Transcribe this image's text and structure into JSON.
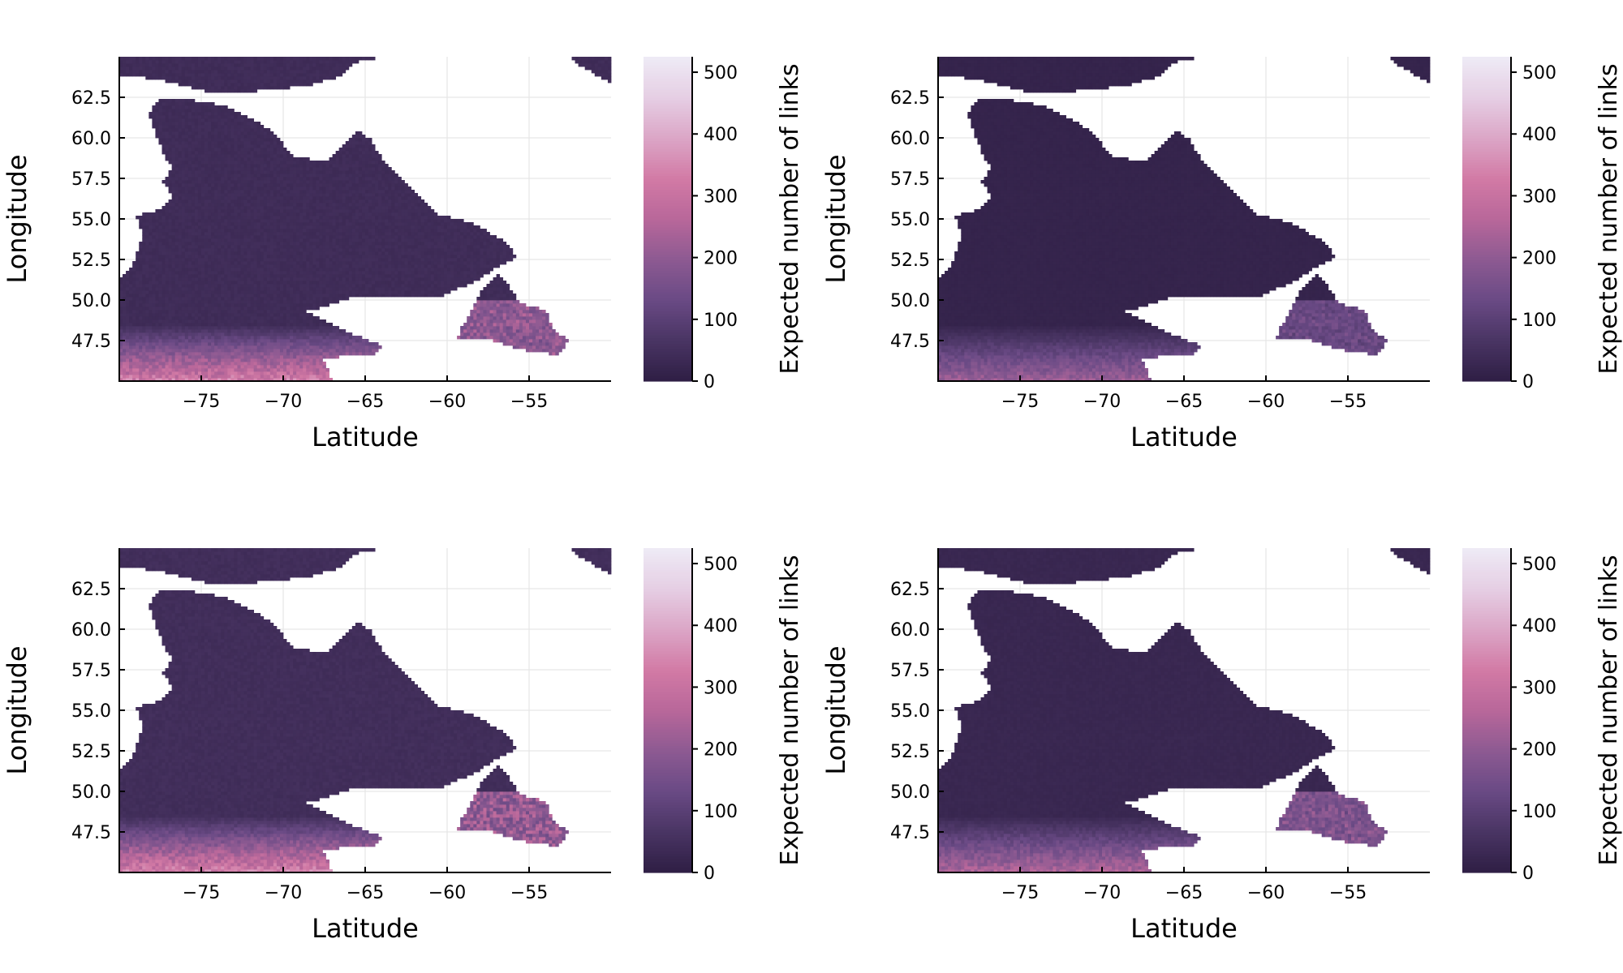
{
  "figure": {
    "layout": "2x2 grid of heatmap maps",
    "x_axis_label": "Latitude",
    "y_axis_label": "Longitude",
    "colorbar_label": "Expected number of links"
  },
  "chart_data": [
    {
      "type": "heatmap",
      "panel": "top-left",
      "title": "",
      "xlabel": "Latitude",
      "ylabel": "Longitude",
      "xlim": [
        -80,
        -50
      ],
      "ylim": [
        45,
        65
      ],
      "xticks": [
        "−75",
        "−70",
        "−65",
        "−60",
        "−55"
      ],
      "xtick_values": [
        -75,
        -70,
        -65,
        -60,
        -55
      ],
      "yticks": [
        "47.5",
        "50.0",
        "52.5",
        "55.0",
        "57.5",
        "60.0",
        "62.5"
      ],
      "ytick_values": [
        47.5,
        50.0,
        52.5,
        55.0,
        57.5,
        60.0,
        62.5
      ],
      "colorbar": {
        "label": "Expected number of links",
        "range": [
          0,
          525
        ],
        "ticks": [
          "0",
          "100",
          "200",
          "300",
          "400",
          "500"
        ],
        "tick_values": [
          0,
          100,
          200,
          300,
          400,
          500
        ]
      },
      "intensity": {
        "north": 40,
        "south": 330,
        "southeast": 230
      },
      "grid": true
    },
    {
      "type": "heatmap",
      "panel": "top-right",
      "title": "",
      "xlabel": "Latitude",
      "ylabel": "Longitude",
      "xlim": [
        -80,
        -50
      ],
      "ylim": [
        45,
        65
      ],
      "xticks": [
        "−75",
        "−70",
        "−65",
        "−60",
        "−55"
      ],
      "xtick_values": [
        -75,
        -70,
        -65,
        -60,
        -55
      ],
      "yticks": [
        "47.5",
        "50.0",
        "52.5",
        "55.0",
        "57.5",
        "60.0",
        "62.5"
      ],
      "ytick_values": [
        47.5,
        50.0,
        52.5,
        55.0,
        57.5,
        60.0,
        62.5
      ],
      "colorbar": {
        "label": "Expected number of links",
        "range": [
          0,
          525
        ],
        "ticks": [
          "0",
          "100",
          "200",
          "300",
          "400",
          "500"
        ],
        "tick_values": [
          0,
          100,
          200,
          300,
          400,
          500
        ]
      },
      "intensity": {
        "north": 15,
        "south": 220,
        "southeast": 150
      },
      "grid": true
    },
    {
      "type": "heatmap",
      "panel": "bottom-left",
      "title": "",
      "xlabel": "Latitude",
      "ylabel": "Longitude",
      "xlim": [
        -80,
        -50
      ],
      "ylim": [
        45,
        65
      ],
      "xticks": [
        "−75",
        "−70",
        "−65",
        "−60",
        "−55"
      ],
      "xtick_values": [
        -75,
        -70,
        -65,
        -60,
        -55
      ],
      "yticks": [
        "47.5",
        "50.0",
        "52.5",
        "55.0",
        "57.5",
        "60.0",
        "62.5"
      ],
      "ytick_values": [
        47.5,
        50.0,
        52.5,
        55.0,
        57.5,
        60.0,
        62.5
      ],
      "colorbar": {
        "label": "Expected number of links",
        "range": [
          0,
          525
        ],
        "ticks": [
          "0",
          "100",
          "200",
          "300",
          "400",
          "500"
        ],
        "tick_values": [
          0,
          100,
          200,
          300,
          400,
          500
        ]
      },
      "intensity": {
        "north": 45,
        "south": 340,
        "southeast": 240
      },
      "grid": true
    },
    {
      "type": "heatmap",
      "panel": "bottom-right",
      "title": "",
      "xlabel": "Latitude",
      "ylabel": "Longitude",
      "xlim": [
        -80,
        -50
      ],
      "ylim": [
        45,
        65
      ],
      "xticks": [
        "−75",
        "−70",
        "−65",
        "−60",
        "−55"
      ],
      "xtick_values": [
        -75,
        -70,
        -65,
        -60,
        -55
      ],
      "yticks": [
        "47.5",
        "50.0",
        "52.5",
        "55.0",
        "57.5",
        "60.0",
        "62.5"
      ],
      "ytick_values": [
        47.5,
        50.0,
        52.5,
        55.0,
        57.5,
        60.0,
        62.5
      ],
      "colorbar": {
        "label": "Expected number of links",
        "range": [
          0,
          525
        ],
        "ticks": [
          "0",
          "100",
          "200",
          "300",
          "400",
          "500"
        ],
        "tick_values": [
          0,
          100,
          200,
          300,
          400,
          500
        ]
      },
      "intensity": {
        "north": 25,
        "south": 250,
        "southeast": 200
      },
      "grid": true
    }
  ],
  "colors": {
    "colormap": [
      "#2f1f45",
      "#4a3564",
      "#6a4a85",
      "#8d5a92",
      "#b8679a",
      "#d27aa5",
      "#dba5c6",
      "#e5cde3",
      "#eeeaf5"
    ],
    "axis": "#000000",
    "grid": "#e6e6e6",
    "background": "#ffffff"
  }
}
